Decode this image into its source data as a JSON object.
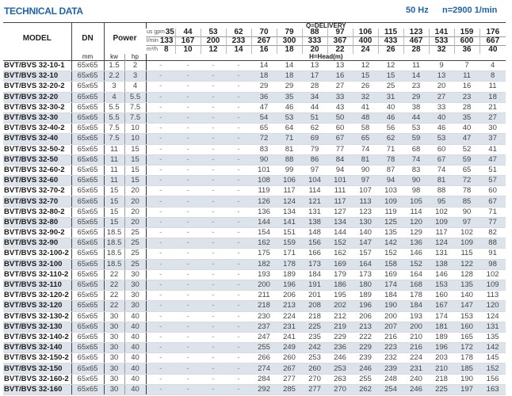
{
  "header": {
    "title": "TECHNICAL DATA",
    "frequency": "50 Hz",
    "speed": "n=2900 1/min"
  },
  "columns": {
    "model": "MODEL",
    "dn": "DN",
    "dn_unit": "mm",
    "power": "Power",
    "kw": "kw",
    "hp": "hp",
    "delivery_label": "Q=DELIVERY",
    "head_label": "H=Head(m)",
    "gpm_unit": "us gpm",
    "lmin_unit": "l/min",
    "m3h_unit": "m³/h",
    "gpm": [
      "35",
      "44",
      "53",
      "62",
      "70",
      "79",
      "88",
      "97",
      "106",
      "115",
      "123",
      "141",
      "159",
      "176"
    ],
    "lmin": [
      "133",
      "167",
      "200",
      "233",
      "267",
      "300",
      "333",
      "367",
      "400",
      "433",
      "467",
      "533",
      "600",
      "667"
    ],
    "m3h": [
      "8",
      "10",
      "12",
      "14",
      "16",
      "18",
      "20",
      "22",
      "24",
      "26",
      "28",
      "32",
      "36",
      "40"
    ]
  },
  "colors": {
    "title": "#1f63ad",
    "stripe": "#dde3ea"
  },
  "rows": [
    {
      "model": "BVT/BVS 32-10-1",
      "dn": "65x65",
      "kw": "1.5",
      "hp": "2",
      "head": [
        "-",
        "-",
        "-",
        "-",
        "14",
        "14",
        "13",
        "13",
        "12",
        "12",
        "11",
        "9",
        "7",
        "4"
      ]
    },
    {
      "model": "BVT/BVS 32-10",
      "dn": "65x65",
      "kw": "2.2",
      "hp": "3",
      "head": [
        "-",
        "-",
        "-",
        "-",
        "18",
        "18",
        "17",
        "16",
        "15",
        "15",
        "14",
        "13",
        "11",
        "8"
      ]
    },
    {
      "model": "BVT/BVS 32-20-2",
      "dn": "65x65",
      "kw": "3",
      "hp": "4",
      "head": [
        "-",
        "-",
        "-",
        "-",
        "29",
        "29",
        "28",
        "27",
        "26",
        "25",
        "23",
        "20",
        "16",
        "11"
      ]
    },
    {
      "model": "BVT/BVS 32-20",
      "dn": "65x65",
      "kw": "4",
      "hp": "5.5",
      "head": [
        "-",
        "-",
        "-",
        "-",
        "36",
        "35",
        "34",
        "33",
        "32",
        "31",
        "29",
        "27",
        "23",
        "18"
      ]
    },
    {
      "model": "BVT/BVS 32-30-2",
      "dn": "65x65",
      "kw": "5.5",
      "hp": "7.5",
      "head": [
        "-",
        "-",
        "-",
        "-",
        "47",
        "46",
        "44",
        "43",
        "41",
        "40",
        "38",
        "33",
        "28",
        "21"
      ]
    },
    {
      "model": "BVT/BVS 32-30",
      "dn": "65x65",
      "kw": "5.5",
      "hp": "7.5",
      "head": [
        "-",
        "-",
        "-",
        "-",
        "54",
        "53",
        "51",
        "50",
        "48",
        "46",
        "44",
        "40",
        "35",
        "27"
      ]
    },
    {
      "model": "BVT/BVS 32-40-2",
      "dn": "65x65",
      "kw": "7.5",
      "hp": "10",
      "head": [
        "-",
        "-",
        "-",
        "-",
        "65",
        "64",
        "62",
        "60",
        "58",
        "56",
        "53",
        "46",
        "40",
        "30"
      ]
    },
    {
      "model": "BVT/BVS 32-40",
      "dn": "65x65",
      "kw": "7.5",
      "hp": "10",
      "head": [
        "-",
        "-",
        "-",
        "-",
        "72",
        "71",
        "69",
        "67",
        "65",
        "62",
        "59",
        "53",
        "47",
        "37"
      ]
    },
    {
      "model": "BVT/BVS 32-50-2",
      "dn": "65x65",
      "kw": "11",
      "hp": "15",
      "head": [
        "-",
        "-",
        "-",
        "-",
        "83",
        "81",
        "79",
        "77",
        "74",
        "71",
        "68",
        "60",
        "52",
        "41"
      ]
    },
    {
      "model": "BVT/BVS 32-50",
      "dn": "65x65",
      "kw": "11",
      "hp": "15",
      "head": [
        "-",
        "-",
        "-",
        "-",
        "90",
        "88",
        "86",
        "84",
        "81",
        "78",
        "74",
        "67",
        "59",
        "47"
      ]
    },
    {
      "model": "BVT/BVS 32-60-2",
      "dn": "65x65",
      "kw": "11",
      "hp": "15",
      "head": [
        "-",
        "-",
        "-",
        "-",
        "101",
        "99",
        "97",
        "94",
        "90",
        "87",
        "83",
        "74",
        "65",
        "51"
      ]
    },
    {
      "model": "BVT/BVS 32-60",
      "dn": "65x65",
      "kw": "11",
      "hp": "15",
      "head": [
        "-",
        "-",
        "-",
        "-",
        "108",
        "106",
        "104",
        "101",
        "97",
        "94",
        "90",
        "81",
        "72",
        "57"
      ]
    },
    {
      "model": "BVT/BVS 32-70-2",
      "dn": "65x65",
      "kw": "15",
      "hp": "20",
      "head": [
        "-",
        "-",
        "-",
        "-",
        "119",
        "117",
        "114",
        "111",
        "107",
        "103",
        "98",
        "88",
        "78",
        "60"
      ]
    },
    {
      "model": "BVT/BVS 32-70",
      "dn": "65x65",
      "kw": "15",
      "hp": "20",
      "head": [
        "-",
        "-",
        "-",
        "-",
        "126",
        "124",
        "121",
        "117",
        "113",
        "109",
        "105",
        "95",
        "85",
        "67"
      ]
    },
    {
      "model": "BVT/BVS 32-80-2",
      "dn": "65x65",
      "kw": "15",
      "hp": "20",
      "head": [
        "-",
        "-",
        "-",
        "-",
        "136",
        "134",
        "131",
        "127",
        "123",
        "119",
        "114",
        "102",
        "90",
        "71"
      ]
    },
    {
      "model": "BVT/BVS 32-80",
      "dn": "65x65",
      "kw": "15",
      "hp": "20",
      "head": [
        "-",
        "-",
        "-",
        "-",
        "144",
        "141",
        "138",
        "134",
        "130",
        "125",
        "120",
        "109",
        "97",
        "77"
      ]
    },
    {
      "model": "BVT/BVS 32-90-2",
      "dn": "65x65",
      "kw": "18.5",
      "hp": "25",
      "head": [
        "-",
        "-",
        "-",
        "-",
        "154",
        "151",
        "148",
        "144",
        "140",
        "135",
        "129",
        "117",
        "102",
        "82"
      ]
    },
    {
      "model": "BVT/BVS 32-90",
      "dn": "65x65",
      "kw": "18.5",
      "hp": "25",
      "head": [
        "-",
        "-",
        "-",
        "-",
        "162",
        "159",
        "156",
        "152",
        "147",
        "142",
        "136",
        "124",
        "109",
        "88"
      ]
    },
    {
      "model": "BVT/BVS 32-100-2",
      "dn": "65x65",
      "kw": "18.5",
      "hp": "25",
      "head": [
        "-",
        "-",
        "-",
        "-",
        "175",
        "171",
        "166",
        "162",
        "157",
        "152",
        "146",
        "131",
        "115",
        "91"
      ]
    },
    {
      "model": "BVT/BVS 32-100",
      "dn": "65x65",
      "kw": "18.5",
      "hp": "25",
      "head": [
        "-",
        "-",
        "-",
        "-",
        "182",
        "178",
        "173",
        "169",
        "164",
        "158",
        "152",
        "138",
        "122",
        "98"
      ]
    },
    {
      "model": "BVT/BVS 32-110-2",
      "dn": "65x65",
      "kw": "22",
      "hp": "30",
      "head": [
        "-",
        "-",
        "-",
        "-",
        "193",
        "189",
        "184",
        "179",
        "173",
        "169",
        "164",
        "146",
        "128",
        "102"
      ]
    },
    {
      "model": "BVT/BVS 32-110",
      "dn": "65x65",
      "kw": "22",
      "hp": "30",
      "head": [
        "-",
        "-",
        "-",
        "-",
        "200",
        "196",
        "191",
        "186",
        "180",
        "174",
        "168",
        "153",
        "135",
        "109"
      ]
    },
    {
      "model": "BVT/BVS 32-120-2",
      "dn": "65x65",
      "kw": "22",
      "hp": "30",
      "head": [
        "-",
        "-",
        "-",
        "-",
        "211",
        "206",
        "201",
        "195",
        "189",
        "184",
        "178",
        "160",
        "140",
        "113"
      ]
    },
    {
      "model": "BVT/BVS 32-120",
      "dn": "65x65",
      "kw": "22",
      "hp": "30",
      "head": [
        "-",
        "-",
        "-",
        "-",
        "218",
        "213",
        "208",
        "202",
        "196",
        "190",
        "184",
        "167",
        "147",
        "120"
      ]
    },
    {
      "model": "BVT/BVS 32-130-2",
      "dn": "65x65",
      "kw": "30",
      "hp": "40",
      "head": [
        "-",
        "-",
        "-",
        "-",
        "230",
        "224",
        "218",
        "212",
        "206",
        "200",
        "193",
        "174",
        "153",
        "124"
      ]
    },
    {
      "model": "BVT/BVS 32-130",
      "dn": "65x65",
      "kw": "30",
      "hp": "40",
      "head": [
        "-",
        "-",
        "-",
        "-",
        "237",
        "231",
        "225",
        "219",
        "213",
        "207",
        "200",
        "181",
        "160",
        "131"
      ]
    },
    {
      "model": "BVT/BVS 32-140-2",
      "dn": "65x65",
      "kw": "30",
      "hp": "40",
      "head": [
        "-",
        "-",
        "-",
        "-",
        "247",
        "241",
        "235",
        "229",
        "222",
        "216",
        "210",
        "189",
        "165",
        "135"
      ]
    },
    {
      "model": "BVT/BVS 32-140",
      "dn": "65x65",
      "kw": "30",
      "hp": "40",
      "head": [
        "-",
        "-",
        "-",
        "-",
        "255",
        "249",
        "242",
        "236",
        "229",
        "223",
        "216",
        "196",
        "172",
        "142"
      ]
    },
    {
      "model": "BVT/BVS 32-150-2",
      "dn": "65x65",
      "kw": "30",
      "hp": "40",
      "head": [
        "-",
        "-",
        "-",
        "-",
        "266",
        "260",
        "253",
        "246",
        "239",
        "232",
        "224",
        "203",
        "178",
        "145"
      ]
    },
    {
      "model": "BVT/BVS 32-150",
      "dn": "65x65",
      "kw": "30",
      "hp": "40",
      "head": [
        "-",
        "-",
        "-",
        "-",
        "274",
        "267",
        "260",
        "253",
        "246",
        "239",
        "231",
        "210",
        "185",
        "152"
      ]
    },
    {
      "model": "BVT/BVS 32-160-2",
      "dn": "65x65",
      "kw": "30",
      "hp": "40",
      "head": [
        "-",
        "-",
        "-",
        "-",
        "284",
        "277",
        "270",
        "263",
        "255",
        "248",
        "240",
        "218",
        "190",
        "156"
      ]
    },
    {
      "model": "BVT/BVS 32-160",
      "dn": "65x65",
      "kw": "30",
      "hp": "40",
      "head": [
        "-",
        "-",
        "-",
        "-",
        "292",
        "285",
        "277",
        "270",
        "262",
        "254",
        "246",
        "225",
        "197",
        "163"
      ]
    }
  ]
}
